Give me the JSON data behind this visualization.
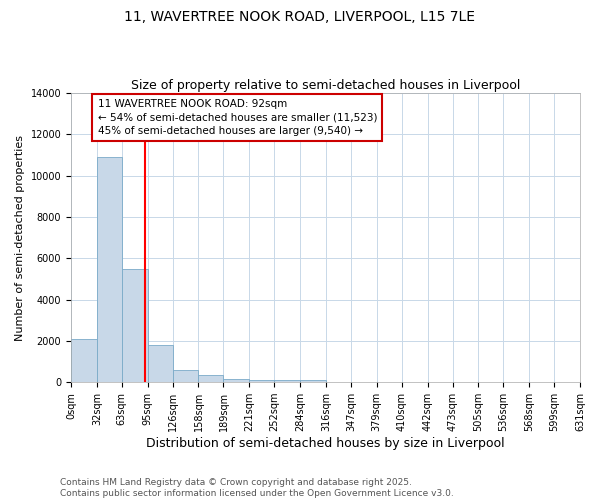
{
  "title": "11, WAVERTREE NOOK ROAD, LIVERPOOL, L15 7LE",
  "subtitle": "Size of property relative to semi-detached houses in Liverpool",
  "xlabel": "Distribution of semi-detached houses by size in Liverpool",
  "ylabel": "Number of semi-detached properties",
  "bin_edges": [
    0,
    32,
    63,
    95,
    126,
    158,
    189,
    221,
    252,
    284,
    316,
    347,
    379,
    410,
    442,
    473,
    505,
    536,
    568,
    599,
    631
  ],
  "bar_heights": [
    2100,
    10900,
    5500,
    1800,
    600,
    350,
    150,
    100,
    100,
    100,
    0,
    0,
    0,
    0,
    0,
    0,
    0,
    0,
    0,
    0
  ],
  "bar_color": "#c8d8e8",
  "bar_edge_color": "#7aaac8",
  "red_line_x": 92,
  "ylim": [
    0,
    14000
  ],
  "xlim": [
    0,
    631
  ],
  "annotation_line1": "11 WAVERTREE NOOK ROAD: 92sqm",
  "annotation_line2": "← 54% of semi-detached houses are smaller (11,523)",
  "annotation_line3": "45% of semi-detached houses are larger (9,540) →",
  "annotation_box_color": "#ffffff",
  "annotation_box_edge_color": "#cc0000",
  "footer_line1": "Contains HM Land Registry data © Crown copyright and database right 2025.",
  "footer_line2": "Contains public sector information licensed under the Open Government Licence v3.0.",
  "title_fontsize": 10,
  "subtitle_fontsize": 9,
  "xlabel_fontsize": 9,
  "ylabel_fontsize": 8,
  "tick_fontsize": 7,
  "annotation_fontsize": 7.5,
  "footer_fontsize": 6.5,
  "grid_color": "#c8d8e8"
}
